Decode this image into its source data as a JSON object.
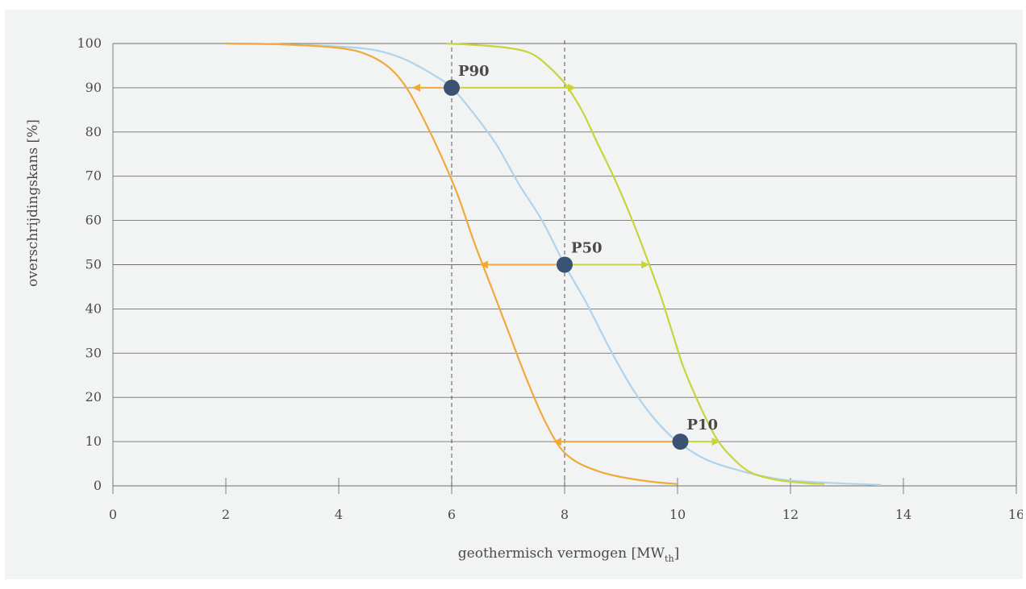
{
  "chart_data": {
    "type": "line",
    "xlabel": "geothermisch vermogen [MW",
    "xlabel_sub": "th",
    "xlabel_end": "]",
    "ylabel": "overschrijdingskans [%]",
    "xlim": [
      0,
      16
    ],
    "ylim": [
      0,
      100
    ],
    "x_ticks": [
      0,
      2,
      4,
      6,
      8,
      10,
      12,
      14,
      16
    ],
    "y_ticks": [
      0,
      10,
      20,
      30,
      40,
      50,
      60,
      70,
      80,
      90,
      100
    ],
    "grid": true,
    "series": [
      {
        "color": "#aed4ec",
        "points": [
          [
            2.0,
            100
          ],
          [
            3.0,
            99.8
          ],
          [
            4.0,
            99.3
          ],
          [
            4.6,
            98.6
          ],
          [
            5.1,
            96.8
          ],
          [
            5.6,
            93.5
          ],
          [
            6.0,
            90
          ],
          [
            6.4,
            84
          ],
          [
            6.8,
            77
          ],
          [
            7.2,
            68
          ],
          [
            7.6,
            60
          ],
          [
            8.0,
            50
          ],
          [
            8.4,
            41
          ],
          [
            8.8,
            31
          ],
          [
            9.2,
            22
          ],
          [
            9.6,
            15
          ],
          [
            10.0,
            10
          ],
          [
            10.5,
            6
          ],
          [
            11.0,
            3.8
          ],
          [
            11.5,
            2.2
          ],
          [
            12.0,
            1.2
          ],
          [
            12.5,
            0.8
          ],
          [
            13.0,
            0.5
          ],
          [
            13.6,
            0.2
          ]
        ]
      },
      {
        "color": "#f2a93b",
        "points": [
          [
            2.0,
            100
          ],
          [
            3.0,
            99.8
          ],
          [
            4.0,
            99
          ],
          [
            4.5,
            97.5
          ],
          [
            4.9,
            94.5
          ],
          [
            5.2,
            90
          ],
          [
            5.5,
            83
          ],
          [
            5.8,
            75
          ],
          [
            6.1,
            66
          ],
          [
            6.4,
            55
          ],
          [
            6.7,
            45
          ],
          [
            7.0,
            35
          ],
          [
            7.3,
            25
          ],
          [
            7.6,
            16
          ],
          [
            7.9,
            9
          ],
          [
            8.2,
            5.5
          ],
          [
            8.6,
            3.3
          ],
          [
            9.0,
            2.0
          ],
          [
            9.5,
            1.0
          ],
          [
            10.0,
            0.4
          ]
        ]
      },
      {
        "color": "#c9d43a",
        "points": [
          [
            5.9,
            100
          ],
          [
            6.5,
            99.6
          ],
          [
            7.0,
            99
          ],
          [
            7.4,
            97.8
          ],
          [
            7.7,
            95
          ],
          [
            8.0,
            91
          ],
          [
            8.3,
            85
          ],
          [
            8.6,
            77
          ],
          [
            8.9,
            69
          ],
          [
            9.2,
            60
          ],
          [
            9.5,
            50
          ],
          [
            9.7,
            43
          ],
          [
            9.9,
            35
          ],
          [
            10.1,
            27
          ],
          [
            10.4,
            18
          ],
          [
            10.7,
            10.5
          ],
          [
            11.0,
            6
          ],
          [
            11.3,
            3
          ],
          [
            11.7,
            1.5
          ],
          [
            12.1,
            0.8
          ],
          [
            12.6,
            0.4
          ]
        ]
      }
    ],
    "annotations": [
      {
        "label": "P90",
        "x": 6.0,
        "y": 90,
        "left_to": 5.3,
        "right_to": 8.2
      },
      {
        "label": "P50",
        "x": 8.0,
        "y": 50,
        "left_to": 6.5,
        "right_to": 9.5
      },
      {
        "label": "P10",
        "x": 10.05,
        "y": 10,
        "left_to": 7.8,
        "right_to": 10.75
      }
    ],
    "vlines": [
      6.0,
      8.0
    ],
    "point_color": "#3b5373",
    "arrow_left_color": "#f2a93b",
    "arrow_right_color": "#c9d43a"
  }
}
